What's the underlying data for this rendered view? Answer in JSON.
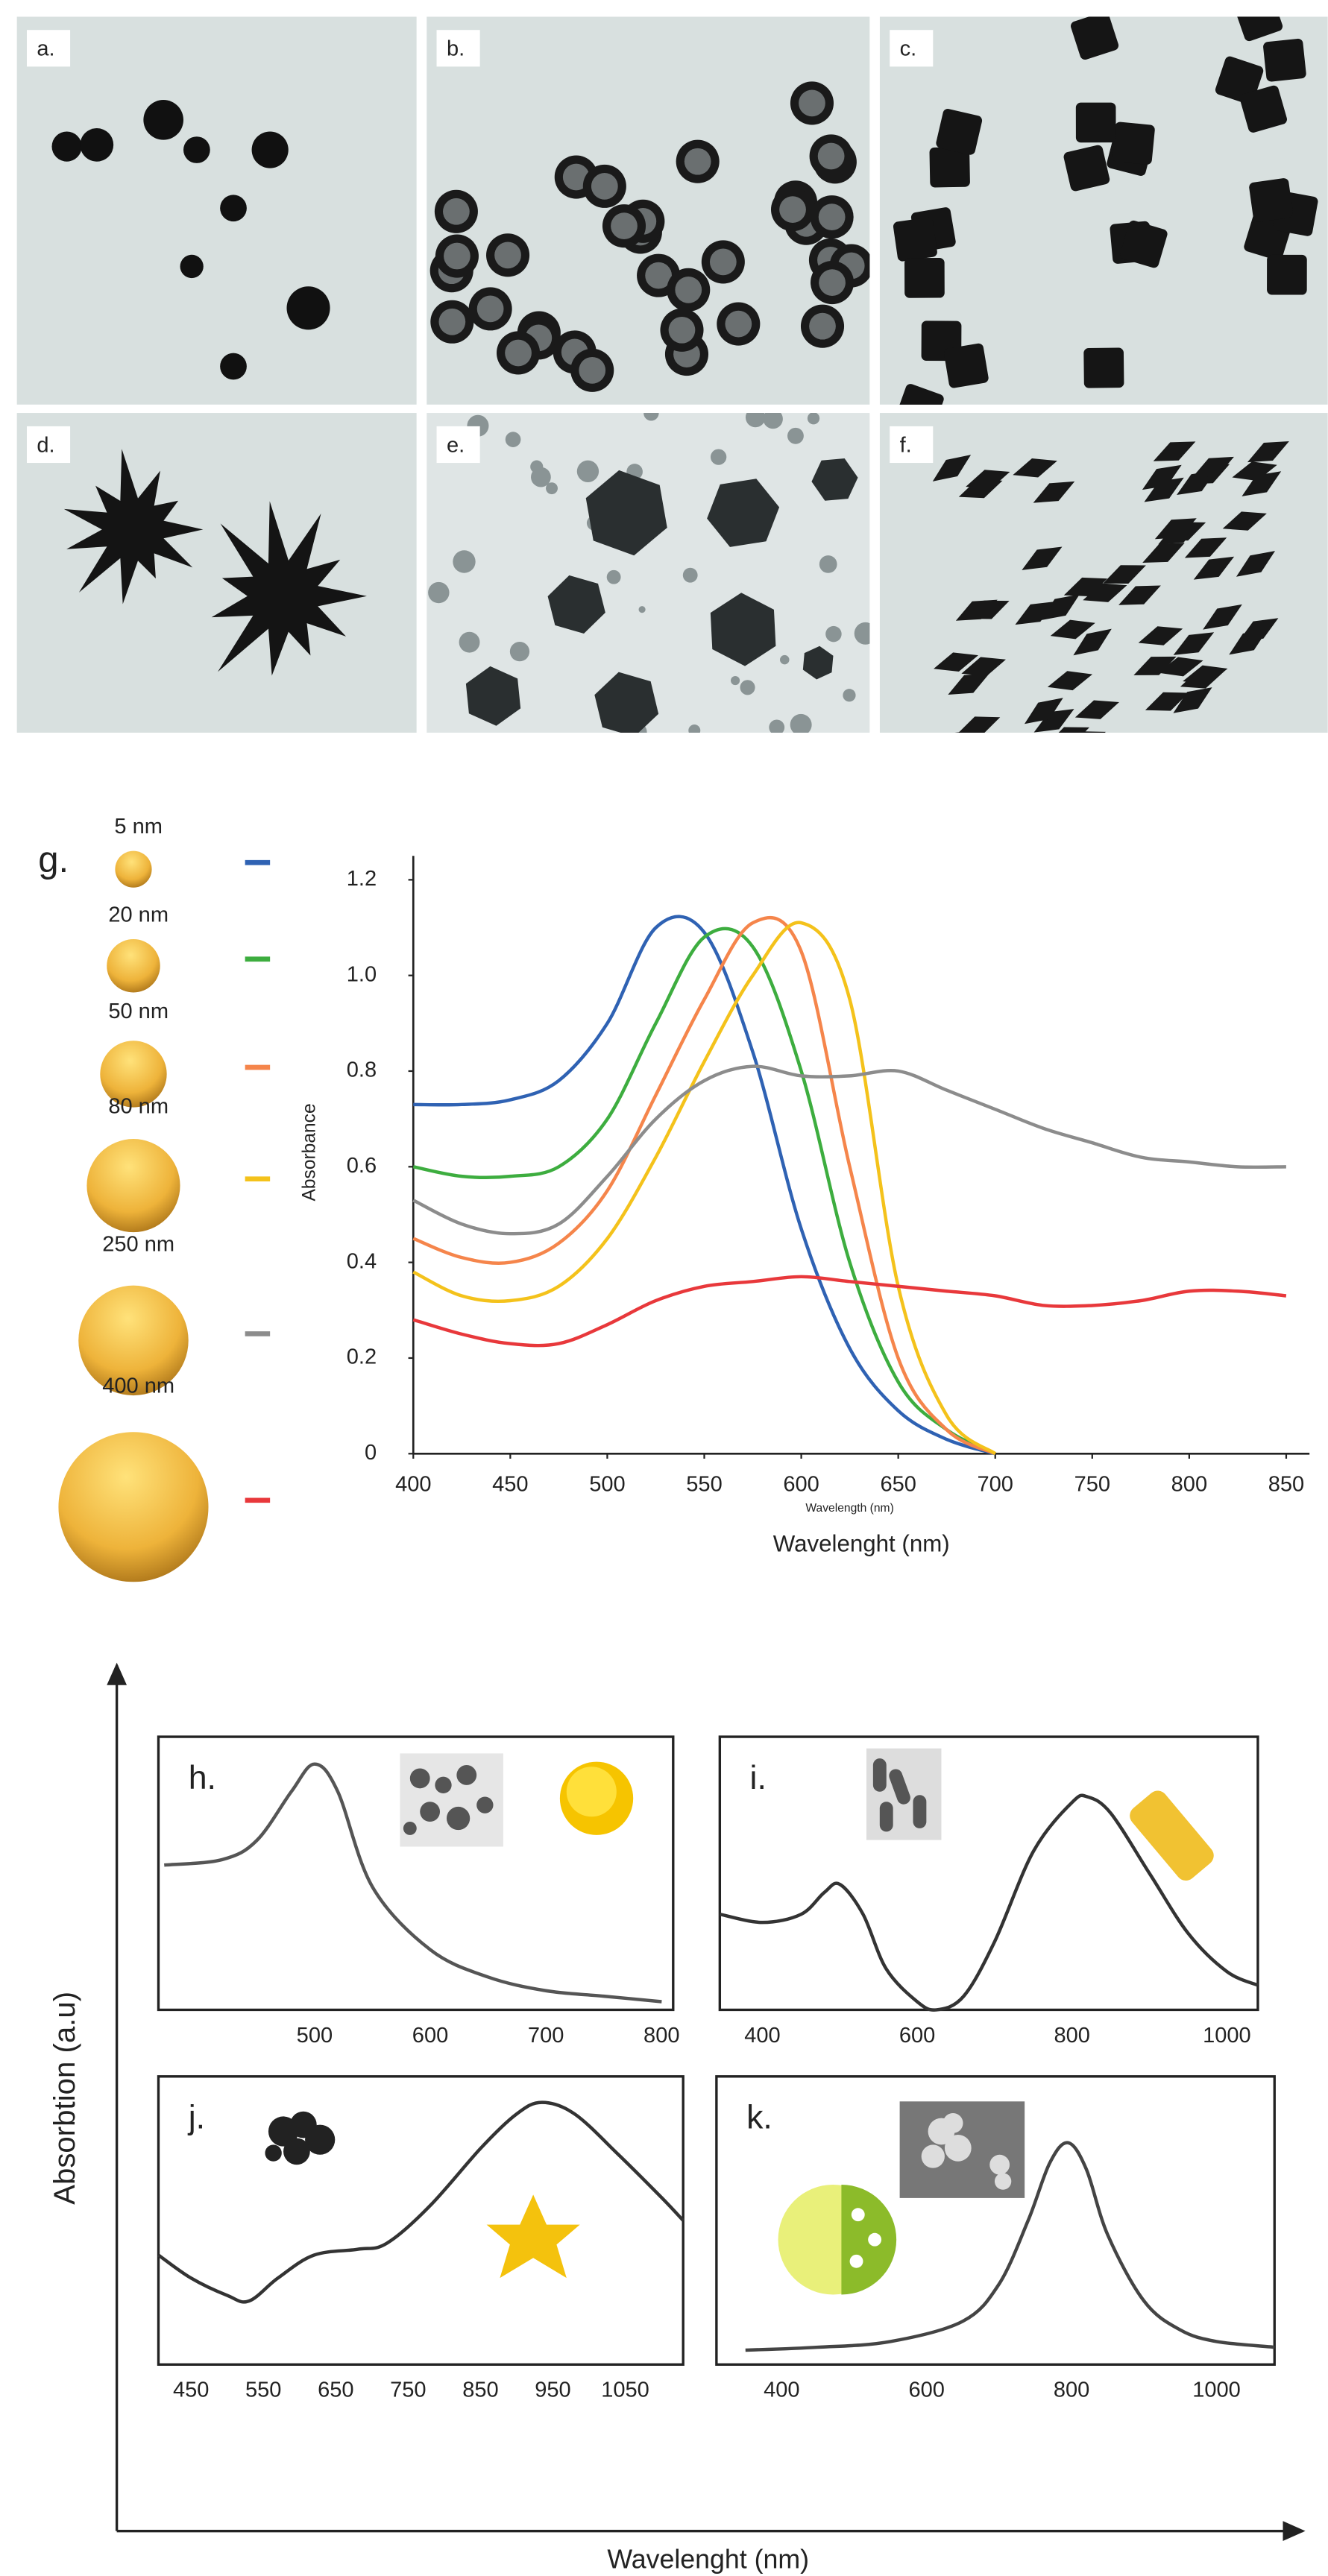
{
  "tem_labels": [
    "a.",
    "b.",
    "c.",
    "d.",
    "e.",
    "f."
  ],
  "shared_axes": {
    "ylabel": "Absorbtion (a.u)",
    "xlabel": "Wavelenght (nm)"
  },
  "chart_data": [
    {
      "type": "line",
      "label": "g.",
      "ylabel": "Absorbance",
      "xlabel": "Wavelength (nm)",
      "xlabel_outer": "Wavelenght (nm)",
      "x": [
        400,
        425,
        450,
        475,
        500,
        525,
        550,
        575,
        600,
        625,
        650,
        675,
        700,
        725,
        750,
        775,
        800,
        825,
        850
      ],
      "xlim": [
        400,
        862
      ],
      "ylim": [
        0,
        1.25
      ],
      "xticks": [
        400,
        450,
        500,
        550,
        600,
        650,
        700,
        750,
        800,
        850
      ],
      "yticks": [
        0,
        0.2,
        0.4,
        0.6,
        0.8,
        {
          "value": 1,
          "label": "1.0"
        },
        1.2
      ],
      "series": [
        {
          "name": "5 nm",
          "color": "#2f62b3",
          "values": [
            0.73,
            0.73,
            0.74,
            0.78,
            0.9,
            1.1,
            1.09,
            0.84,
            0.47,
            0.22,
            0.09,
            0.03,
            0,
            null,
            null,
            null,
            null,
            null,
            null
          ]
        },
        {
          "name": "20 nm",
          "color": "#3dad3f",
          "values": [
            0.6,
            0.58,
            0.58,
            0.6,
            0.7,
            0.9,
            1.08,
            1.06,
            0.8,
            0.4,
            0.15,
            0.05,
            0,
            null,
            null,
            null,
            null,
            null,
            null
          ]
        },
        {
          "name": "50 nm",
          "color": "#f5854b",
          "values": [
            0.45,
            0.41,
            0.4,
            0.44,
            0.55,
            0.75,
            0.95,
            1.11,
            1.05,
            0.6,
            0.2,
            0.05,
            0,
            null,
            null,
            null,
            null,
            null,
            null
          ]
        },
        {
          "name": "80 nm",
          "color": "#f4c21b",
          "values": [
            0.38,
            0.33,
            0.32,
            0.35,
            0.45,
            0.62,
            0.82,
            1.0,
            1.11,
            0.95,
            0.35,
            0.08,
            0,
            null,
            null,
            null,
            null,
            null,
            null
          ]
        },
        {
          "name": "250 nm",
          "color": "#8c8c8c",
          "values": [
            0.53,
            0.48,
            0.46,
            0.48,
            0.58,
            0.7,
            0.78,
            0.81,
            0.79,
            0.79,
            0.8,
            0.76,
            0.72,
            0.68,
            0.65,
            0.62,
            0.61,
            0.6,
            0.6
          ]
        },
        {
          "name": "400 nm",
          "color": "#e8383b",
          "values": [
            0.28,
            0.25,
            0.23,
            0.23,
            0.27,
            0.32,
            0.35,
            0.36,
            0.37,
            0.36,
            0.35,
            0.34,
            0.33,
            0.31,
            0.31,
            0.32,
            0.34,
            0.34,
            0.33
          ]
        }
      ]
    },
    {
      "type": "line",
      "label": "h.",
      "color": "#555555",
      "x": [
        370,
        420,
        450,
        480,
        500,
        520,
        550,
        600,
        650,
        700,
        750,
        800
      ],
      "values": [
        0.53,
        0.55,
        0.62,
        0.8,
        0.9,
        0.8,
        0.45,
        0.22,
        0.12,
        0.07,
        0.05,
        0.03
      ],
      "xlim": [
        365,
        810
      ],
      "ylim": [
        0,
        1
      ],
      "xticks": [
        500,
        600,
        700,
        800
      ]
    },
    {
      "type": "line",
      "label": "i.",
      "color": "#333333",
      "x": [
        345,
        400,
        450,
        480,
        500,
        530,
        560,
        600,
        625,
        660,
        700,
        750,
        800,
        820,
        850,
        900,
        950,
        1000,
        1040
      ],
      "values": [
        0.35,
        0.32,
        0.35,
        0.43,
        0.46,
        0.35,
        0.15,
        0.03,
        0.0,
        0.05,
        0.25,
        0.58,
        0.76,
        0.78,
        0.72,
        0.5,
        0.28,
        0.14,
        0.09
      ],
      "xlim": [
        345,
        1040
      ],
      "ylim": [
        0,
        1
      ],
      "xticks": [
        400,
        600,
        800,
        1000
      ]
    },
    {
      "type": "line",
      "label": "j.",
      "color": "#333333",
      "x": [
        405,
        450,
        500,
        530,
        570,
        620,
        680,
        720,
        780,
        850,
        900,
        935,
        980,
        1040,
        1100,
        1130
      ],
      "values": [
        0.38,
        0.3,
        0.24,
        0.22,
        0.3,
        0.38,
        0.4,
        0.42,
        0.55,
        0.75,
        0.87,
        0.91,
        0.87,
        0.73,
        0.58,
        0.5
      ],
      "xlim": [
        405,
        1130
      ],
      "ylim": [
        0,
        1
      ],
      "xticks": [
        450,
        550,
        650,
        750,
        850,
        950,
        1050
      ]
    },
    {
      "type": "line",
      "label": "k.",
      "color": "#444444",
      "x": [
        350,
        450,
        550,
        650,
        700,
        740,
        770,
        795,
        820,
        850,
        900,
        950,
        1000,
        1080
      ],
      "values": [
        0.05,
        0.06,
        0.08,
        0.15,
        0.28,
        0.5,
        0.7,
        0.77,
        0.68,
        0.45,
        0.22,
        0.12,
        0.08,
        0.06
      ],
      "xlim": [
        310,
        1080
      ],
      "ylim": [
        0,
        1
      ],
      "xticks": [
        400,
        600,
        800,
        1000
      ]
    }
  ]
}
